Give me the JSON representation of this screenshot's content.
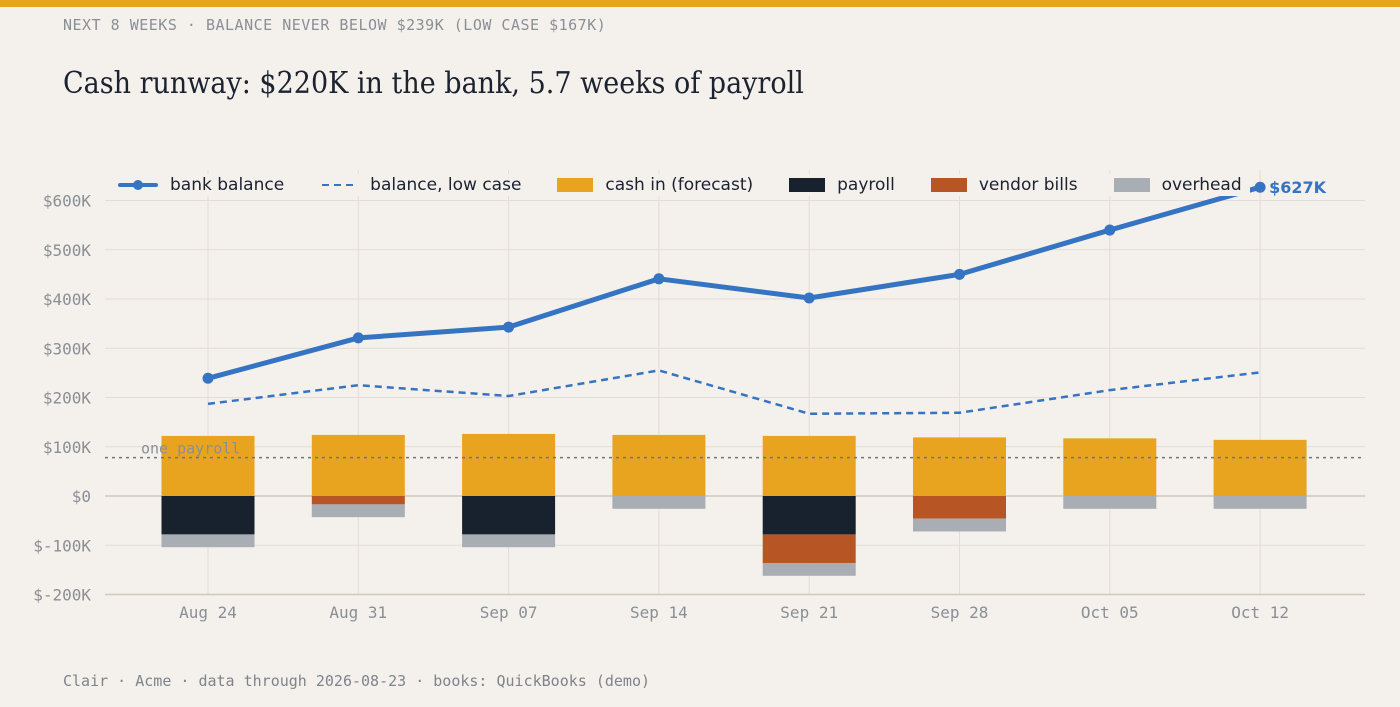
{
  "header": {
    "eyebrow": "NEXT 8 WEEKS · BALANCE NEVER BELOW $239K (LOW CASE $167K)",
    "title": "Cash runway: $220K in the bank, 5.7 weeks of payroll"
  },
  "footer": {
    "text": "Clair · Acme · data through 2026-08-23 · books: QuickBooks (demo)"
  },
  "legend": {
    "balance": "bank balance",
    "low_case": "balance, low case",
    "cash_in": "cash in (forecast)",
    "payroll": "payroll",
    "vendor": "vendor bills",
    "overhead": "overhead"
  },
  "colors": {
    "background": "#f4f0eb",
    "accent": "#e8a41f",
    "balance": "#3574c2",
    "cash_in": "#e8a41f",
    "payroll": "#18222e",
    "vendor": "#b85524",
    "overhead": "#a9adb4",
    "grid": "#e2ddd6",
    "axis_text": "#8a8f96"
  },
  "chart_data": {
    "type": "bar",
    "categories": [
      "Aug 24",
      "Aug 31",
      "Sep 07",
      "Sep 14",
      "Sep 21",
      "Sep 28",
      "Oct 05",
      "Oct 12"
    ],
    "ylim": [
      -200,
      600
    ],
    "y_ticks": [
      -200,
      -100,
      0,
      100,
      200,
      300,
      400,
      500,
      600
    ],
    "y_tick_labels": [
      "$-200K",
      "$-100K",
      "$0",
      "$100K",
      "$200K",
      "$300K",
      "$400K",
      "$500K",
      "$600K"
    ],
    "grid": true,
    "legend_position": "top",
    "series": [
      {
        "name": "cash in (forecast)",
        "kind": "bar",
        "values": [
          122,
          124,
          126,
          124,
          122,
          119,
          117,
          114
        ]
      },
      {
        "name": "payroll",
        "kind": "bar",
        "values": [
          -78,
          0,
          -78,
          0,
          -78,
          0,
          0,
          0
        ]
      },
      {
        "name": "vendor bills",
        "kind": "bar",
        "values": [
          0,
          -17,
          0,
          0,
          -58,
          -46,
          0,
          0
        ]
      },
      {
        "name": "overhead",
        "kind": "bar",
        "values": [
          -26,
          -26,
          -26,
          -26,
          -26,
          -26,
          -26,
          -26
        ]
      },
      {
        "name": "bank balance",
        "kind": "line",
        "values": [
          239,
          321,
          343,
          441,
          402,
          450,
          540,
          627
        ]
      },
      {
        "name": "balance, low case",
        "kind": "dashed-line",
        "values": [
          187,
          225,
          203,
          255,
          167,
          169,
          215,
          251
        ]
      }
    ],
    "reference_line": {
      "label": "one payroll",
      "value": 78
    },
    "end_label": "$627K"
  }
}
